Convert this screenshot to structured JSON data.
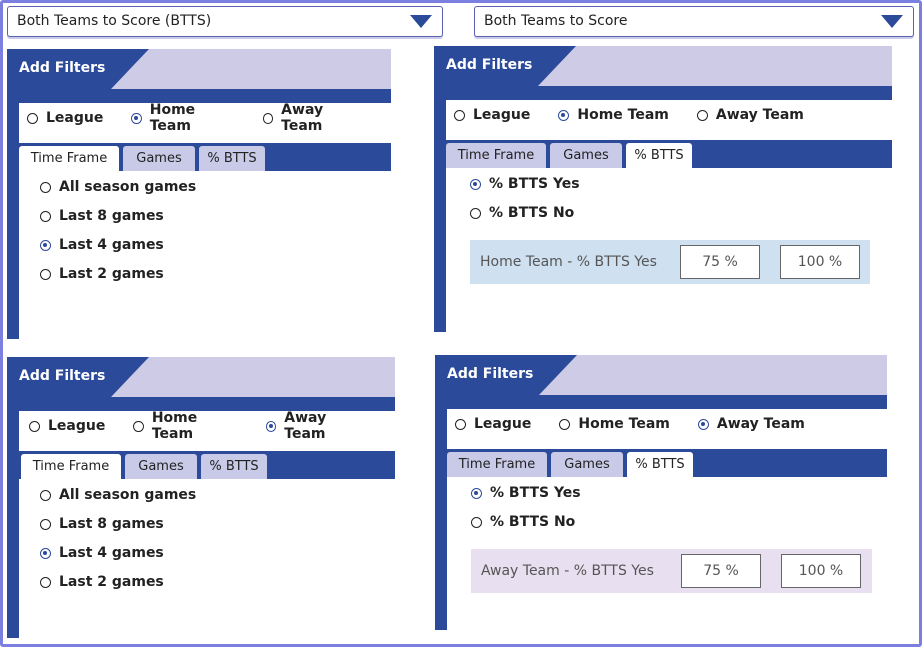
{
  "dropdowns": {
    "left": "Both Teams to Score (BTTS)",
    "right": "Both Teams to Score"
  },
  "panels": [
    {
      "title": "Add Filters",
      "radios": [
        "League",
        "Home Team",
        "Away Team"
      ],
      "selected_radio": "Home Team",
      "tabs": [
        "Time Frame",
        "Games",
        "% BTTS"
      ],
      "active_tab": "Time Frame",
      "options": [
        "All season games",
        "Last 8 games",
        "Last 4 games",
        "Last 2 games"
      ],
      "selected_option": "Last 4 games"
    },
    {
      "title": "Add Filters",
      "radios": [
        "League",
        "Home Team",
        "Away Team"
      ],
      "selected_radio": "Home Team",
      "tabs": [
        "Time Frame",
        "Games",
        "% BTTS"
      ],
      "active_tab": "% BTTS",
      "options": [
        "% BTTS Yes",
        "% BTTS No"
      ],
      "selected_option": "% BTTS Yes",
      "range": {
        "label": "Home Team - % BTTS Yes",
        "min": "75 %",
        "max": "100 %",
        "bg": "#cfe0f1"
      }
    },
    {
      "title": "Add Filters",
      "radios": [
        "League",
        "Home Team",
        "Away Team"
      ],
      "selected_radio": "Away Team",
      "tabs": [
        "Time Frame",
        "Games",
        "% BTTS"
      ],
      "active_tab": "Time Frame",
      "options": [
        "All season games",
        "Last 8 games",
        "Last 4 games",
        "Last 2 games"
      ],
      "selected_option": "Last 4 games"
    },
    {
      "title": "Add Filters",
      "radios": [
        "League",
        "Home Team",
        "Away Team"
      ],
      "selected_radio": "Away Team",
      "tabs": [
        "Time Frame",
        "Games",
        "% BTTS"
      ],
      "active_tab": "% BTTS",
      "options": [
        "% BTTS Yes",
        "% BTTS No"
      ],
      "selected_option": "% BTTS Yes",
      "range": {
        "label": "Away Team - % BTTS Yes",
        "min": "75 %",
        "max": "100 %",
        "bg": "#e8dff0"
      }
    }
  ],
  "colors": {
    "accent": "#2c4a9a",
    "header_bg": "#cdcbe6",
    "frame": "#7b7fe0"
  }
}
